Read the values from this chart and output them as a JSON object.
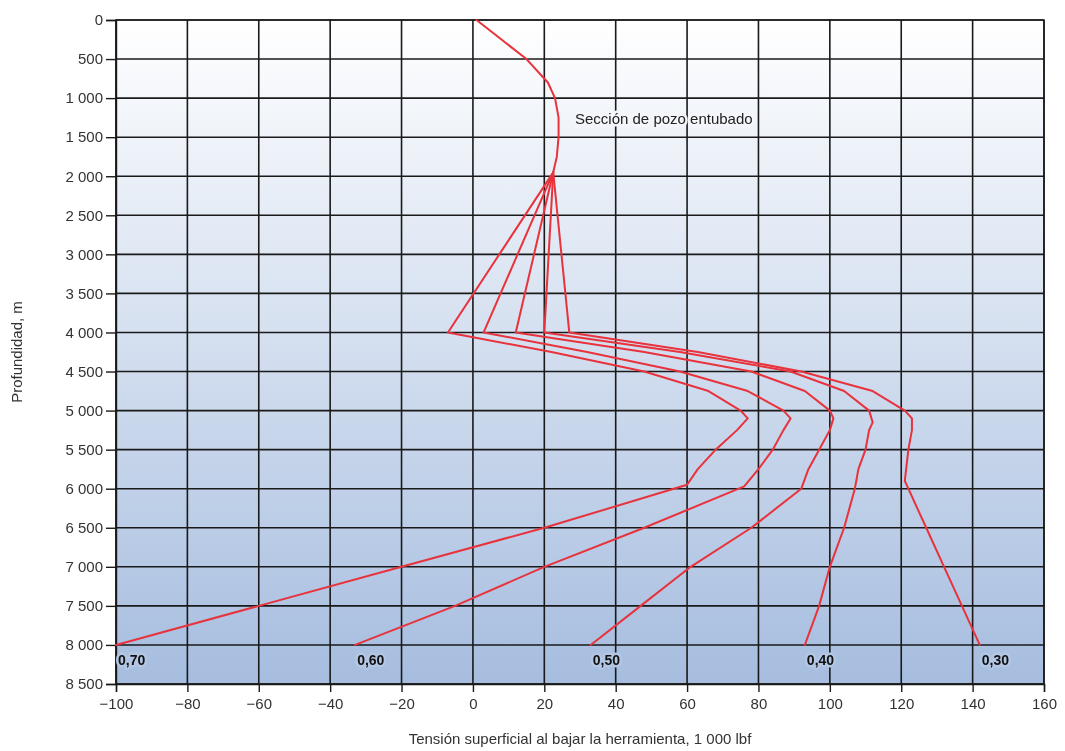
{
  "chart_data": {
    "type": "line",
    "xlabel": "Tensión superficial al bajar la herramienta, 1 000 lbf",
    "ylabel": "Profundidad, m",
    "xlim": [
      -100,
      160
    ],
    "ylim": [
      8500,
      0
    ],
    "xticks": [
      {
        "value": -100,
        "label": "−100"
      },
      {
        "value": -80,
        "label": "−80"
      },
      {
        "value": -60,
        "label": "−60"
      },
      {
        "value": -40,
        "label": "−40"
      },
      {
        "value": -20,
        "label": "−20"
      },
      0,
      20,
      40,
      60,
      80,
      100,
      120,
      140,
      160
    ],
    "yticks": [
      0,
      500,
      {
        "value": 1000,
        "label": "1 000"
      },
      {
        "value": 1500,
        "label": "1 500"
      },
      {
        "value": 2000,
        "label": "2 000"
      },
      {
        "value": 2500,
        "label": "2 500"
      },
      {
        "value": 3000,
        "label": "3 000"
      },
      {
        "value": 3500,
        "label": "3 500"
      },
      {
        "value": 4000,
        "label": "4 000"
      },
      {
        "value": 4500,
        "label": "4 500"
      },
      {
        "value": 5000,
        "label": "5 000"
      },
      {
        "value": 5500,
        "label": "5 500"
      },
      {
        "value": 6000,
        "label": "6 000"
      },
      {
        "value": 6500,
        "label": "6 500"
      },
      {
        "value": 7000,
        "label": "7 000"
      },
      {
        "value": 7500,
        "label": "7 500"
      },
      {
        "value": 8000,
        "label": "8 000"
      },
      {
        "value": 8500,
        "label": "8 500"
      }
    ],
    "grid": true,
    "marker": "none",
    "line_style": "solid",
    "annotations": [
      "Sección de pozo entubado"
    ],
    "series": [
      {
        "name": "0,70",
        "color": "#e8323c",
        "x": [
          22.5,
          -7,
          22,
          48,
          66,
          75,
          77,
          74,
          68,
          63,
          60,
          20,
          -20,
          -60,
          -100
        ],
        "values": [
          1950,
          4000,
          4250,
          4500,
          4750,
          5000,
          5100,
          5250,
          5500,
          5750,
          5950,
          6500,
          7000,
          7500,
          8000
        ]
      },
      {
        "name": "0,60",
        "color": "#e8323c",
        "x": [
          22.5,
          3,
          32,
          58,
          77,
          87,
          89,
          87,
          84,
          80,
          76,
          48,
          20,
          -5,
          -33
        ],
        "values": [
          1950,
          4000,
          4250,
          4500,
          4750,
          5000,
          5100,
          5250,
          5500,
          5750,
          5970,
          6500,
          7000,
          7500,
          8000
        ]
      },
      {
        "name": "0,50",
        "color": "#e8323c",
        "x": [
          22.5,
          12,
          48,
          78,
          93,
          100,
          101,
          100,
          97,
          94,
          92,
          78,
          61,
          47,
          33
        ],
        "values": [
          1950,
          4000,
          4250,
          4500,
          4750,
          5000,
          5100,
          5250,
          5500,
          5750,
          6000,
          6500,
          7000,
          7500,
          8000
        ]
      },
      {
        "name": "0,40",
        "color": "#e8323c",
        "x": [
          22.5,
          20,
          58,
          89,
          104,
          111,
          112,
          111,
          110,
          108,
          107,
          104,
          100,
          97,
          93
        ],
        "values": [
          1950,
          4000,
          4250,
          4500,
          4750,
          5000,
          5150,
          5250,
          5500,
          5750,
          6000,
          6500,
          7000,
          7500,
          8000
        ]
      },
      {
        "name": "0,30",
        "color": "#e8323c",
        "x": [
          1,
          8,
          15,
          21,
          23,
          24,
          24,
          23.5,
          22.5,
          27,
          63,
          92,
          112,
          121,
          123,
          123,
          122,
          121,
          122,
          127,
          132,
          137,
          142
        ],
        "values": [
          0,
          250,
          500,
          800,
          1000,
          1250,
          1500,
          1750,
          1950,
          4000,
          4250,
          4500,
          4750,
          5000,
          5100,
          5250,
          5500,
          5900,
          6000,
          6500,
          7000,
          7500,
          8000
        ]
      }
    ]
  }
}
